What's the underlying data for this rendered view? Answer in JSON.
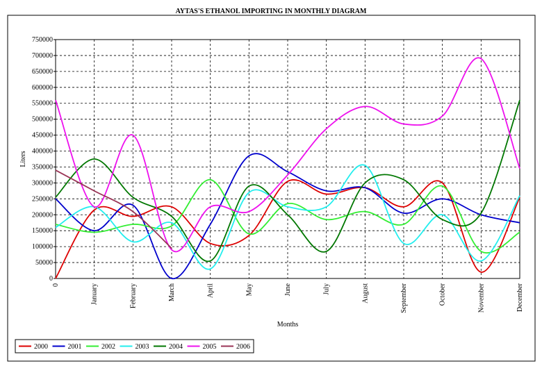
{
  "chart_data": {
    "type": "line",
    "title": "AYTAS'S ETHANOL IMPORTING IN MONTHLY DIAGRAM",
    "x_label": "Months",
    "y_label": "Liters",
    "categories": [
      "0",
      "January",
      "February",
      "March",
      "April",
      "May",
      "June",
      "July",
      "August",
      "September",
      "October",
      "November",
      "December"
    ],
    "series": [
      {
        "name": "2000",
        "color": "#dd0000",
        "values": [
          0,
          215000,
          195000,
          225000,
          110000,
          135000,
          305000,
          265000,
          285000,
          225000,
          300000,
          20000,
          255000
        ]
      },
      {
        "name": "2001",
        "color": "#0000cc",
        "values": [
          250000,
          150000,
          230000,
          0,
          170000,
          385000,
          335000,
          275000,
          285000,
          205000,
          250000,
          200000,
          175000
        ]
      },
      {
        "name": "2002",
        "color": "#33ee33",
        "values": [
          170000,
          145000,
          170000,
          165000,
          310000,
          140000,
          235000,
          185000,
          210000,
          170000,
          290000,
          85000,
          145000
        ]
      },
      {
        "name": "2003",
        "color": "#22eeee",
        "values": [
          160000,
          225000,
          115000,
          175000,
          30000,
          270000,
          225000,
          225000,
          355000,
          110000,
          200000,
          55000,
          260000
        ]
      },
      {
        "name": "2004",
        "color": "#007700",
        "values": [
          255000,
          375000,
          255000,
          195000,
          55000,
          290000,
          200000,
          85000,
          300000,
          310000,
          185000,
          205000,
          560000
        ]
      },
      {
        "name": "2005",
        "color": "#ee11ee",
        "values": [
          560000,
          225000,
          450000,
          90000,
          225000,
          210000,
          325000,
          470000,
          540000,
          485000,
          510000,
          690000,
          345000
        ]
      },
      {
        "name": "2006",
        "color": "#993355",
        "values": [
          340000,
          275000,
          210000,
          95000,
          null,
          null,
          null,
          null,
          null,
          null,
          null,
          null,
          null
        ]
      }
    ],
    "ylim": [
      0,
      750000
    ],
    "yticks": [
      0,
      50000,
      100000,
      150000,
      200000,
      250000,
      300000,
      350000,
      400000,
      450000,
      500000,
      550000,
      600000,
      650000,
      700000,
      750000
    ],
    "grid": true,
    "legend": "bottom-left"
  }
}
